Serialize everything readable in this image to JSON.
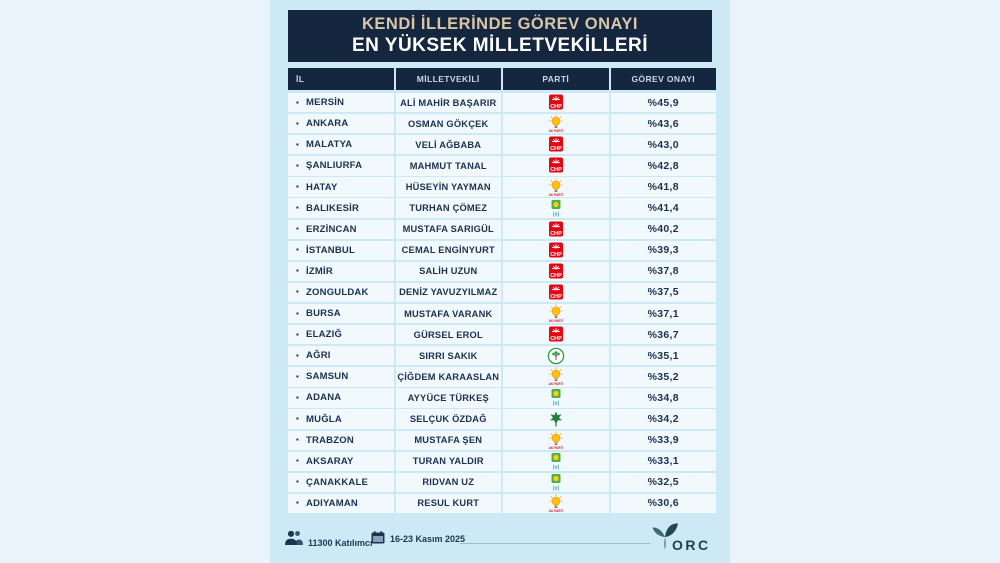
{
  "meta": {
    "title_line1": "KENDİ İLLERİNDE GÖREV ONAYI",
    "title_line2": "EN YÜKSEK MİLLETVEKİLLERİ"
  },
  "icons": {
    "bullet": "▪"
  },
  "chart_data": {
    "type": "table",
    "title": "KENDİ İLLERİNDE GÖREV ONAYI EN YÜKSEK MİLLETVEKİLLERİ",
    "columns": [
      "İL",
      "MİLLETVEKİLİ",
      "PARTİ",
      "GÖREV ONAYI"
    ],
    "rows": [
      {
        "il": "MERSİN",
        "mp": "ALİ MAHİR BAŞARIR",
        "party": "CHP",
        "approval": 45.9,
        "approval_label": "%45,9"
      },
      {
        "il": "ANKARA",
        "mp": "OSMAN GÖKÇEK",
        "party": "AKP",
        "approval": 43.6,
        "approval_label": "%43,6"
      },
      {
        "il": "MALATYA",
        "mp": "VELİ AĞBABA",
        "party": "CHP",
        "approval": 43.0,
        "approval_label": "%43,0"
      },
      {
        "il": "ŞANLIURFA",
        "mp": "MAHMUT TANAL",
        "party": "CHP",
        "approval": 42.8,
        "approval_label": "%42,8"
      },
      {
        "il": "HATAY",
        "mp": "HÜSEYİN YAYMAN",
        "party": "AKP",
        "approval": 41.8,
        "approval_label": "%41,8"
      },
      {
        "il": "BALIKESİR",
        "mp": "TURHAN ÇÖMEZ",
        "party": "IYI",
        "approval": 41.4,
        "approval_label": "%41,4"
      },
      {
        "il": "ERZİNCAN",
        "mp": "MUSTAFA SARIGÜL",
        "party": "CHP",
        "approval": 40.2,
        "approval_label": "%40,2"
      },
      {
        "il": "İSTANBUL",
        "mp": "CEMAL ENGİNYURT",
        "party": "CHP",
        "approval": 39.3,
        "approval_label": "%39,3"
      },
      {
        "il": "İZMİR",
        "mp": "SALİH UZUN",
        "party": "CHP",
        "approval": 37.8,
        "approval_label": "%37,8"
      },
      {
        "il": "ZONGULDAK",
        "mp": "DENİZ YAVUZYILMAZ",
        "party": "CHP",
        "approval": 37.5,
        "approval_label": "%37,5"
      },
      {
        "il": "BURSA",
        "mp": "MUSTAFA VARANK",
        "party": "AKP",
        "approval": 37.1,
        "approval_label": "%37,1"
      },
      {
        "il": "ELAZIĞ",
        "mp": "GÜRSEL EROL",
        "party": "CHP",
        "approval": 36.7,
        "approval_label": "%36,7"
      },
      {
        "il": "AĞRI",
        "mp": "SIRRI SAKIK",
        "party": "DEM",
        "approval": 35.1,
        "approval_label": "%35,1"
      },
      {
        "il": "SAMSUN",
        "mp": "ÇİĞDEM KARAASLAN",
        "party": "AKP",
        "approval": 35.2,
        "approval_label": "%35,2"
      },
      {
        "il": "ADANA",
        "mp": "AYYÜCE TÜRKEŞ",
        "party": "IYI",
        "approval": 34.8,
        "approval_label": "%34,8"
      },
      {
        "il": "MUĞLA",
        "mp": "SELÇUK ÖZDAĞ",
        "party": "GELECEK",
        "approval": 34.2,
        "approval_label": "%34,2"
      },
      {
        "il": "TRABZON",
        "mp": "MUSTAFA ŞEN",
        "party": "AKP",
        "approval": 33.9,
        "approval_label": "%33,9"
      },
      {
        "il": "AKSARAY",
        "mp": "TURAN YALDIR",
        "party": "IYI",
        "approval": 33.1,
        "approval_label": "%33,1"
      },
      {
        "il": "ÇANAKKALE",
        "mp": "RIDVAN UZ",
        "party": "IYI",
        "approval": 32.5,
        "approval_label": "%32,5"
      },
      {
        "il": "ADIYAMAN",
        "mp": "RESUL KURT",
        "party": "AKP",
        "approval": 30.6,
        "approval_label": "%30,6"
      }
    ]
  },
  "parties": {
    "CHP": {
      "label": "CHP",
      "color": "#e30613"
    },
    "AKP": {
      "label": "AK PARTİ",
      "color": "#ffc20e"
    },
    "IYI": {
      "label": "İYİ",
      "color": "#2aa1a5"
    },
    "DEM": {
      "label": "DEM",
      "color": "#2e9e4f"
    },
    "GELECEK": {
      "label": "GELECEK",
      "color": "#1e7f3c"
    }
  },
  "footer": {
    "participants": "11300 Katılımcı",
    "date_range": "16-23 Kasım 2025",
    "brand": "ORC"
  },
  "colors": {
    "navy": "#15263f",
    "panel": "#cde9f6",
    "background": "#e9f3fb",
    "row": "#f1f9fd",
    "title_accent": "#d8c6a6",
    "text": "#1c3150"
  }
}
